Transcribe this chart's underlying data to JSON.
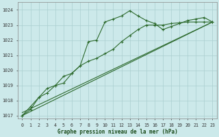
{
  "title": "Graphe pression niveau de la mer (hPa)",
  "background_color": "#cce9ea",
  "grid_color": "#aacfcf",
  "line_color": "#2d6a2d",
  "xlim": [
    -0.5,
    23.5
  ],
  "ylim": [
    1016.8,
    1024.5
  ],
  "yticks": [
    1017,
    1018,
    1019,
    1020,
    1021,
    1022,
    1023,
    1024
  ],
  "xtick_labels": [
    "0",
    "1",
    "2",
    "3",
    "4",
    "5",
    "6",
    "7",
    "8",
    "9",
    "10",
    "11",
    "12",
    "13",
    "14",
    "15",
    "16",
    "17",
    "18",
    "19",
    "20",
    "21",
    "22",
    "23"
  ],
  "series1_x": [
    0,
    1,
    2,
    3,
    4,
    5,
    6,
    7,
    8,
    9,
    10,
    11,
    12,
    13,
    14,
    15,
    16,
    17,
    18,
    19,
    20,
    21,
    22,
    23
  ],
  "series1_y": [
    1017.0,
    1017.6,
    1018.2,
    1018.8,
    1019.0,
    1019.15,
    1019.8,
    1020.3,
    1021.9,
    1022.0,
    1023.2,
    1023.4,
    1023.6,
    1023.95,
    1023.6,
    1023.3,
    1023.1,
    1022.7,
    1022.9,
    1023.1,
    1023.3,
    1023.4,
    1023.5,
    1023.2
  ],
  "series2_x": [
    0,
    1,
    2,
    3,
    4,
    5,
    6,
    7,
    8,
    9,
    10,
    11,
    12,
    13,
    14,
    15,
    16,
    17,
    18,
    19,
    20,
    21,
    22,
    23
  ],
  "series2_y": [
    1017.0,
    1017.4,
    1018.2,
    1018.5,
    1019.0,
    1019.6,
    1019.8,
    1020.3,
    1020.6,
    1020.8,
    1021.1,
    1021.4,
    1021.9,
    1022.3,
    1022.7,
    1023.0,
    1023.0,
    1023.0,
    1023.1,
    1023.15,
    1023.2,
    1023.2,
    1023.2,
    1023.2
  ],
  "series3_x": [
    0,
    23
  ],
  "series3_y": [
    1017.0,
    1023.2
  ],
  "series4_x": [
    0,
    23
  ],
  "series4_y": [
    1017.0,
    1023.2
  ]
}
